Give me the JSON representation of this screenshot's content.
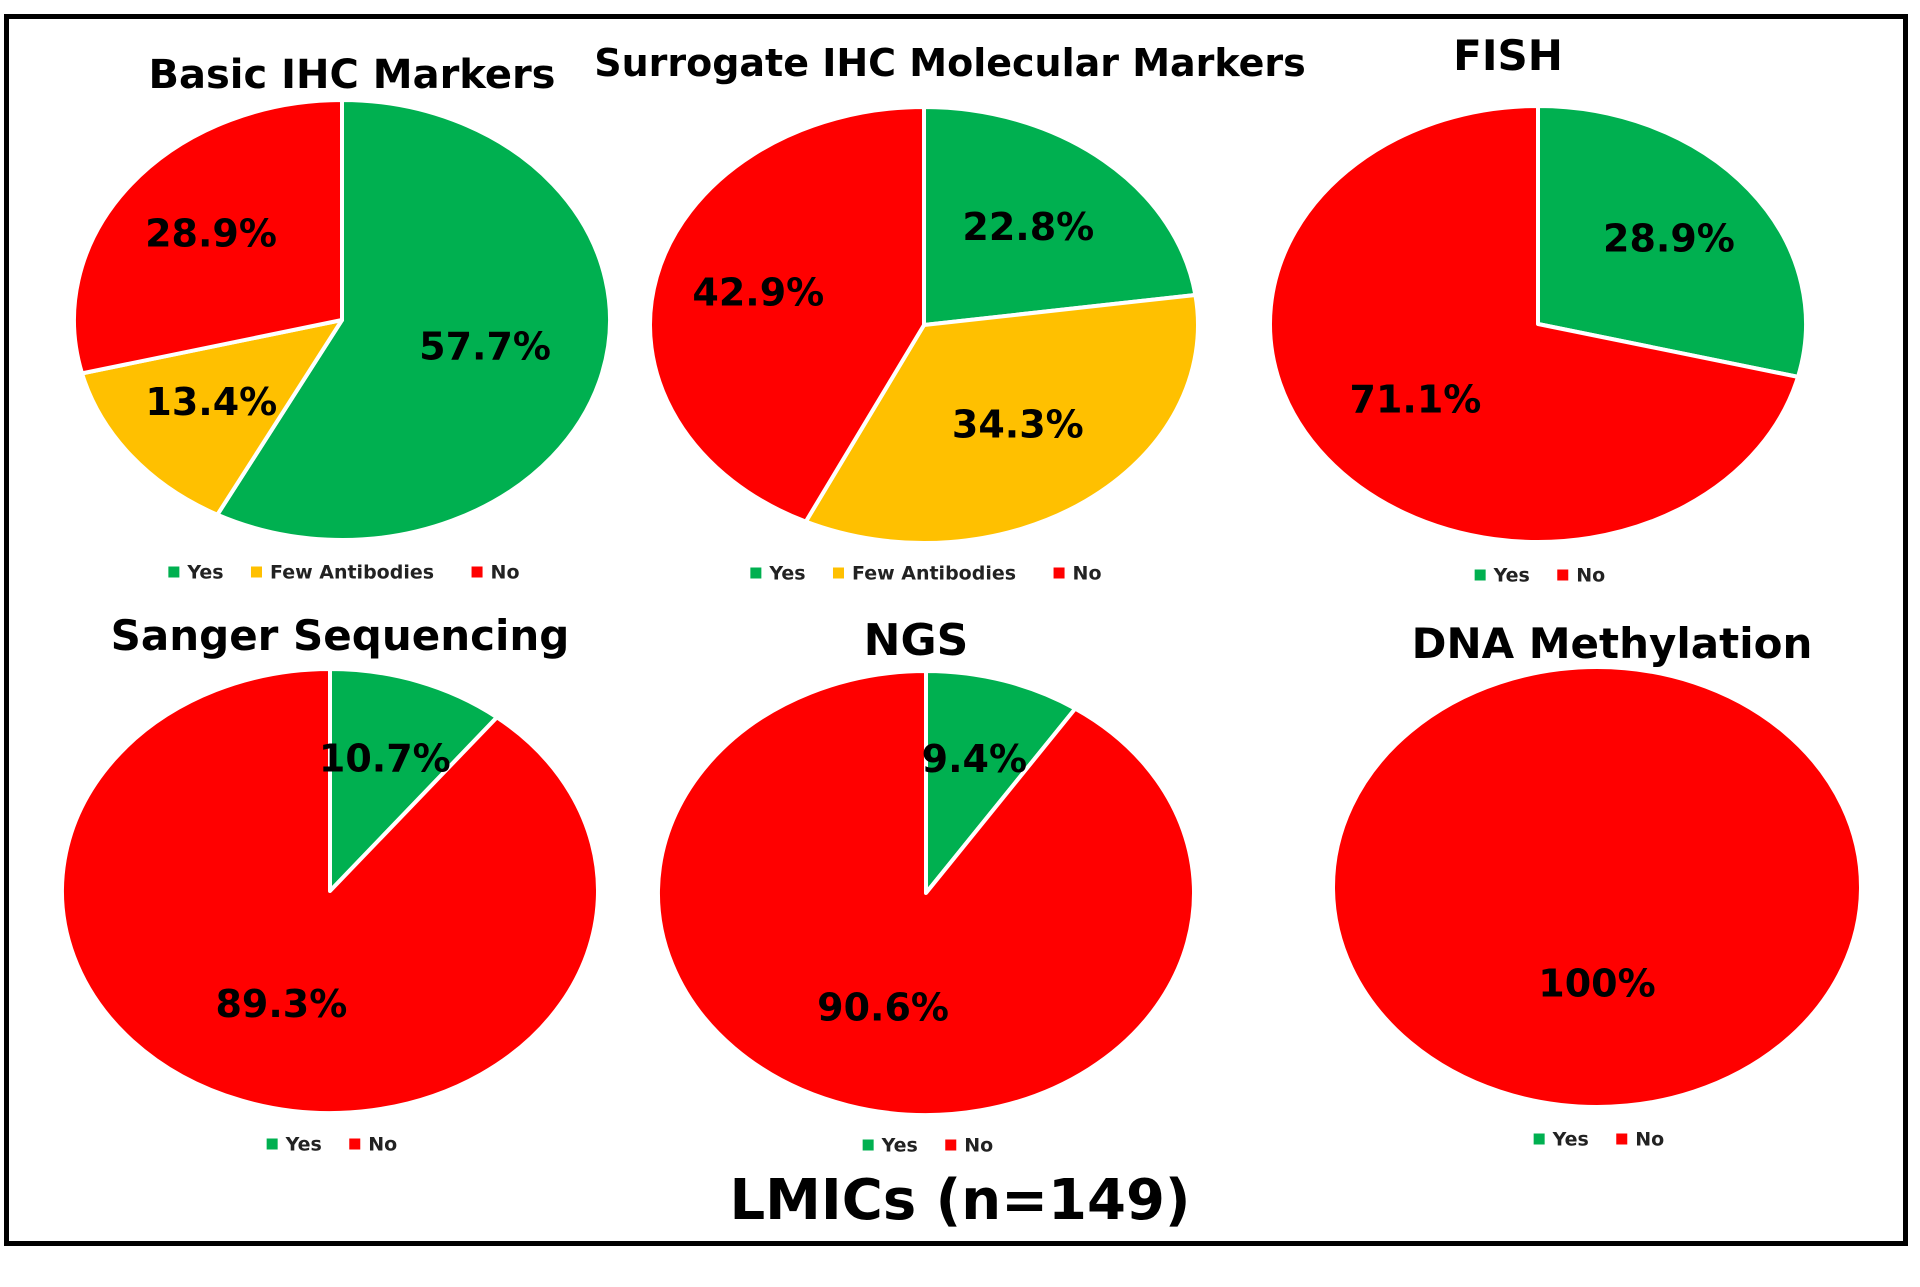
{
  "colors": {
    "yes": "#00b050",
    "few": "#ffc000",
    "no": "#ff0000"
  },
  "bottom_title": "LMICs (n=149)",
  "chart_data": [
    {
      "type": "pie",
      "title": "Basic IHC Markers",
      "slices": [
        {
          "label": "Yes",
          "value": 57.7,
          "text": "57.7%",
          "color": "#00b050"
        },
        {
          "label": "Few Antibodies",
          "value": 13.4,
          "text": "13.4%",
          "color": "#ffc000"
        },
        {
          "label": "No",
          "value": 28.9,
          "text": "28.9%",
          "color": "#ff0000"
        }
      ],
      "legend": [
        "Yes",
        "Few Antibodies",
        "No"
      ],
      "legend_position": "bottom"
    },
    {
      "type": "pie",
      "title": "Surrogate IHC Molecular Markers",
      "slices": [
        {
          "label": "Yes",
          "value": 22.8,
          "text": "22.8%",
          "color": "#00b050"
        },
        {
          "label": "Few Antibodies",
          "value": 34.3,
          "text": "34.3%",
          "color": "#ffc000"
        },
        {
          "label": "No",
          "value": 42.9,
          "text": "42.9%",
          "color": "#ff0000"
        }
      ],
      "legend": [
        "Yes",
        "Few Antibodies",
        "No"
      ],
      "legend_position": "bottom"
    },
    {
      "type": "pie",
      "title": "FISH",
      "slices": [
        {
          "label": "Yes",
          "value": 28.9,
          "text": "28.9%",
          "color": "#00b050"
        },
        {
          "label": "No",
          "value": 71.1,
          "text": "71.1%",
          "color": "#ff0000"
        }
      ],
      "legend": [
        "Yes",
        "No"
      ],
      "legend_position": "bottom"
    },
    {
      "type": "pie",
      "title": "Sanger Sequencing",
      "slices": [
        {
          "label": "Yes",
          "value": 10.7,
          "text": "10.7%",
          "color": "#00b050"
        },
        {
          "label": "No",
          "value": 89.3,
          "text": "89.3%",
          "color": "#ff0000"
        }
      ],
      "legend": [
        "Yes",
        "No"
      ],
      "legend_position": "bottom"
    },
    {
      "type": "pie",
      "title": "NGS",
      "slices": [
        {
          "label": "Yes",
          "value": 9.4,
          "text": "9.4%",
          "color": "#00b050"
        },
        {
          "label": "No",
          "value": 90.6,
          "text": "90.6%",
          "color": "#ff0000"
        }
      ],
      "legend": [
        "Yes",
        "No"
      ],
      "legend_position": "bottom"
    },
    {
      "type": "pie",
      "title": "DNA Methylation",
      "slices": [
        {
          "label": "Yes",
          "value": 0,
          "text": "",
          "color": "#00b050"
        },
        {
          "label": "No",
          "value": 100,
          "text": "100%",
          "color": "#ff0000"
        }
      ],
      "legend": [
        "Yes",
        "No"
      ],
      "legend_position": "bottom"
    }
  ]
}
